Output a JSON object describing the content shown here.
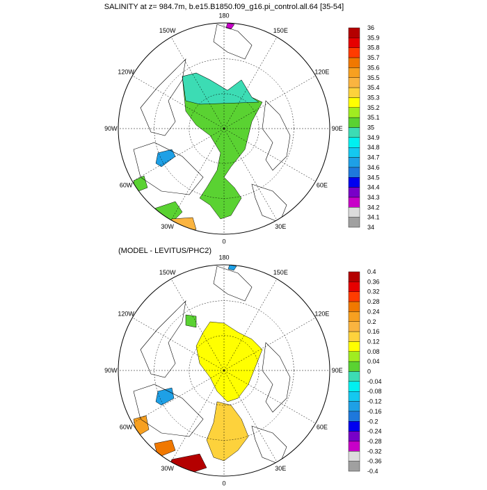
{
  "chart_data": [
    {
      "type": "heatmap",
      "projection": "north-polar-stereographic",
      "title": "SALINITY at z= 984.7m, b.e15.B1850.f09_g16.pi_control.all.64 [35-54]",
      "longitude_labels": [
        "180",
        "150E",
        "120E",
        "90E",
        "60E",
        "30E",
        "0",
        "30W",
        "60W",
        "90W",
        "120W",
        "150W"
      ],
      "colorbar": {
        "levels": [
          "36",
          "35.9",
          "35.8",
          "35.7",
          "35.6",
          "35.5",
          "35.4",
          "35.3",
          "35.2",
          "35.1",
          "35",
          "34.9",
          "34.8",
          "34.7",
          "34.6",
          "34.5",
          "34.4",
          "34.3",
          "34.2",
          "34.1",
          "34"
        ],
        "colors": [
          "#b40000",
          "#e60000",
          "#ff3c00",
          "#f07800",
          "#f7a020",
          "#fab440",
          "#fdd23c",
          "#ffff00",
          "#a0ec20",
          "#5ad232",
          "#3cdcb4",
          "#00f0f0",
          "#14c8f0",
          "#1ea0e6",
          "#1e78dc",
          "#0000f0",
          "#7800c8",
          "#c800c8",
          "#dcdcdc",
          "#a0a0a0"
        ]
      },
      "field_summary": "Atlantic and Eurasian basins ~35.1-35.2; Canadian basin ~35.0; Baffin Bay ~34.7; Nordic Seas 35.1-35.7"
    },
    {
      "type": "heatmap",
      "projection": "north-polar-stereographic",
      "title": "(MODEL - LEVITUS/PHC2)",
      "longitude_labels": [
        "180",
        "150E",
        "120E",
        "90E",
        "60E",
        "30E",
        "0",
        "30W",
        "60W",
        "90W",
        "120W",
        "150W"
      ],
      "colorbar": {
        "levels": [
          "0.4",
          "0.36",
          "0.32",
          "0.28",
          "0.24",
          "0.2",
          "0.16",
          "0.12",
          "0.08",
          "0.04",
          "0",
          "-0.04",
          "-0.08",
          "-0.12",
          "-0.16",
          "-0.2",
          "-0.24",
          "-0.28",
          "-0.32",
          "-0.36",
          "-0.4"
        ],
        "colors": [
          "#b40000",
          "#e60000",
          "#ff3c00",
          "#f07800",
          "#f7a020",
          "#fab440",
          "#fdd23c",
          "#ffff00",
          "#a0ec20",
          "#5ad232",
          "#3cdcb4",
          "#00f0f0",
          "#14c8f0",
          "#1ea0e6",
          "#1e78dc",
          "#0000f0",
          "#7800c8",
          "#c800c8",
          "#dcdcdc",
          "#a0a0a0"
        ]
      },
      "field_summary": "Arctic basin bias ~+0.12 to +0.16; Nordic Seas +0.16 to +0.2; Baffin Bay ~-0.12; south of Iceland up to +0.36 to +0.4"
    }
  ]
}
